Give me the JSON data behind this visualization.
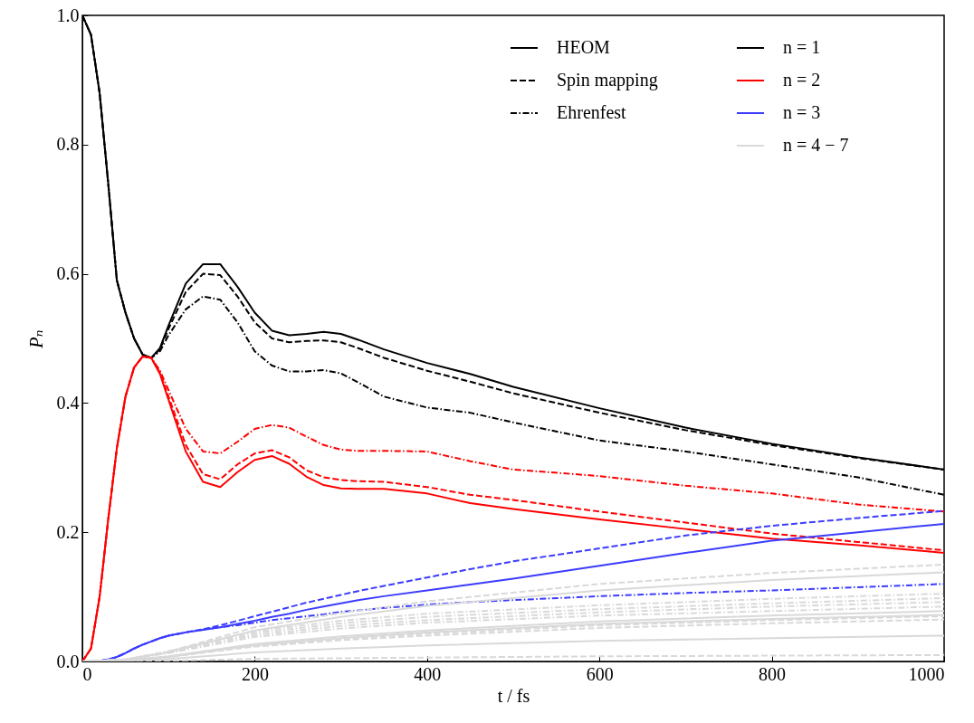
{
  "chart_data": {
    "type": "line",
    "xlabel": "t / fs",
    "ylabel": "Pₙ",
    "xlim": [
      0,
      1000
    ],
    "ylim": [
      0,
      1
    ],
    "xticks": [
      0,
      200,
      400,
      600,
      800,
      1000
    ],
    "yticks": [
      {
        "value": 0,
        "label": "0.0"
      },
      {
        "value": 0.2,
        "label": "0.2"
      },
      {
        "value": 0.4,
        "label": "0.4"
      },
      {
        "value": 0.6,
        "label": "0.6"
      },
      {
        "value": 0.8,
        "label": "0.8"
      },
      {
        "value": 1,
        "label": "1.0"
      }
    ],
    "legend": "top right",
    "annotations": [
      "HEOM",
      "Spin mapping",
      "Ehrenfest"
    ],
    "x": [
      0,
      10,
      20,
      30,
      40,
      50,
      60,
      70,
      80,
      90,
      100,
      120,
      140,
      160,
      180,
      200,
      220,
      240,
      260,
      280,
      300,
      320,
      350,
      400,
      450,
      500,
      600,
      700,
      800,
      900,
      1000
    ],
    "series": [
      {
        "name": "n = 1",
        "color": "#000000",
        "line_style": "solid",
        "values": [
          1,
          0.97,
          0.88,
          0.74,
          0.59,
          0.54,
          0.5,
          0.475,
          0.47,
          0.485,
          0.52,
          0.585,
          0.615,
          0.615,
          0.58,
          0.54,
          0.512,
          0.505,
          0.507,
          0.51,
          0.507,
          0.498,
          0.483,
          0.462,
          0.445,
          0.425,
          0.392,
          0.362,
          0.337,
          0.316,
          0.297
        ]
      },
      {
        "color": "#000000",
        "line_style": "dashed",
        "values": [
          1,
          0.97,
          0.88,
          0.74,
          0.59,
          0.54,
          0.5,
          0.475,
          0.47,
          0.483,
          0.515,
          0.572,
          0.6,
          0.598,
          0.565,
          0.525,
          0.5,
          0.494,
          0.496,
          0.497,
          0.494,
          0.485,
          0.47,
          0.45,
          0.433,
          0.415,
          0.385,
          0.358,
          0.335,
          0.315,
          0.297
        ]
      },
      {
        "color": "#000000",
        "line_style": "dashdot",
        "values": [
          1,
          0.97,
          0.88,
          0.74,
          0.59,
          0.54,
          0.5,
          0.475,
          0.47,
          0.48,
          0.505,
          0.545,
          0.565,
          0.56,
          0.525,
          0.48,
          0.458,
          0.449,
          0.449,
          0.451,
          0.446,
          0.432,
          0.41,
          0.393,
          0.385,
          0.37,
          0.342,
          0.325,
          0.305,
          0.285,
          0.258
        ]
      },
      {
        "name": "n = 2",
        "color": "#ff0000",
        "line_style": "solid",
        "values": [
          0,
          0.02,
          0.1,
          0.22,
          0.33,
          0.41,
          0.455,
          0.472,
          0.47,
          0.445,
          0.405,
          0.325,
          0.278,
          0.27,
          0.293,
          0.312,
          0.318,
          0.306,
          0.286,
          0.273,
          0.268,
          0.267,
          0.267,
          0.26,
          0.245,
          0.236,
          0.22,
          0.205,
          0.19,
          0.18,
          0.168
        ]
      },
      {
        "color": "#ff0000",
        "line_style": "dashed",
        "values": [
          0,
          0.02,
          0.1,
          0.22,
          0.33,
          0.41,
          0.455,
          0.472,
          0.47,
          0.447,
          0.41,
          0.335,
          0.29,
          0.282,
          0.305,
          0.322,
          0.327,
          0.316,
          0.296,
          0.285,
          0.281,
          0.279,
          0.278,
          0.27,
          0.258,
          0.25,
          0.232,
          0.215,
          0.198,
          0.185,
          0.172
        ]
      },
      {
        "color": "#ff0000",
        "line_style": "dashdot",
        "values": [
          0,
          0.02,
          0.1,
          0.22,
          0.33,
          0.41,
          0.455,
          0.472,
          0.47,
          0.45,
          0.42,
          0.36,
          0.325,
          0.322,
          0.34,
          0.36,
          0.366,
          0.362,
          0.348,
          0.335,
          0.328,
          0.326,
          0.326,
          0.325,
          0.31,
          0.297,
          0.287,
          0.272,
          0.26,
          0.243,
          0.232
        ]
      },
      {
        "name": "n = 3",
        "color": "#3c3cff",
        "line_style": "solid",
        "values": [
          0,
          0,
          0.001,
          0.003,
          0.007,
          0.013,
          0.02,
          0.026,
          0.031,
          0.036,
          0.04,
          0.045,
          0.049,
          0.053,
          0.058,
          0.063,
          0.069,
          0.074,
          0.08,
          0.085,
          0.09,
          0.095,
          0.101,
          0.11,
          0.119,
          0.128,
          0.148,
          0.168,
          0.187,
          0.2,
          0.213
        ]
      },
      {
        "color": "#3c3cff",
        "line_style": "dashed",
        "values": [
          0,
          0,
          0.001,
          0.003,
          0.007,
          0.013,
          0.02,
          0.026,
          0.031,
          0.036,
          0.04,
          0.045,
          0.05,
          0.056,
          0.063,
          0.07,
          0.077,
          0.084,
          0.091,
          0.097,
          0.103,
          0.109,
          0.117,
          0.13,
          0.143,
          0.155,
          0.175,
          0.195,
          0.21,
          0.222,
          0.233
        ]
      },
      {
        "color": "#3c3cff",
        "line_style": "dashdot",
        "values": [
          0,
          0,
          0.001,
          0.003,
          0.007,
          0.013,
          0.02,
          0.026,
          0.031,
          0.036,
          0.04,
          0.045,
          0.049,
          0.053,
          0.056,
          0.06,
          0.064,
          0.067,
          0.07,
          0.073,
          0.077,
          0.079,
          0.083,
          0.088,
          0.092,
          0.095,
          0.101,
          0.106,
          0.11,
          0.115,
          0.12
        ]
      },
      {
        "name": "n = 4 − 7",
        "color": "#d9d9d9",
        "line_style": "solid",
        "x": [
          0,
          50,
          100,
          200,
          300,
          400,
          600,
          800,
          1000
        ],
        "values": [
          0,
          0.003,
          0.014,
          0.048,
          0.069,
          0.086,
          0.11,
          0.126,
          0.138
        ]
      },
      {
        "color": "#d9d9d9",
        "line_style": "solid",
        "x": [
          0,
          50,
          100,
          200,
          300,
          400,
          600,
          800,
          1000
        ],
        "values": [
          0,
          0.002,
          0.008,
          0.027,
          0.039,
          0.048,
          0.062,
          0.071,
          0.078
        ]
      },
      {
        "color": "#d9d9d9",
        "line_style": "solid",
        "x": [
          0,
          50,
          100,
          200,
          300,
          400,
          600,
          800,
          1000
        ],
        "values": [
          0,
          0.001,
          0.007,
          0.025,
          0.036,
          0.045,
          0.058,
          0.066,
          0.072
        ]
      },
      {
        "color": "#d9d9d9",
        "line_style": "solid",
        "x": [
          0,
          50,
          100,
          200,
          300,
          400,
          600,
          800,
          1000
        ],
        "values": [
          0,
          0.001,
          0.004,
          0.014,
          0.02,
          0.025,
          0.032,
          0.036,
          0.04
        ]
      },
      {
        "color": "#d9d9d9",
        "line_style": "dashed",
        "x": [
          0,
          50,
          100,
          200,
          300,
          400,
          600,
          800,
          1000
        ],
        "values": [
          0,
          0.003,
          0.015,
          0.053,
          0.075,
          0.093,
          0.12,
          0.137,
          0.15
        ]
      },
      {
        "color": "#d9d9d9",
        "line_style": "dashed",
        "x": [
          0,
          50,
          100,
          200,
          300,
          400,
          600,
          800,
          1000
        ],
        "values": [
          0,
          0.001,
          0.007,
          0.025,
          0.035,
          0.043,
          0.056,
          0.064,
          0.07
        ]
      },
      {
        "color": "#d9d9d9",
        "line_style": "dashed",
        "x": [
          0,
          50,
          100,
          200,
          300,
          400,
          600,
          800,
          1000
        ],
        "values": [
          0,
          0.001,
          0.007,
          0.023,
          0.033,
          0.04,
          0.052,
          0.059,
          0.065
        ]
      },
      {
        "color": "#d9d9d9",
        "line_style": "dashed",
        "x": [
          0,
          50,
          100,
          200,
          300,
          400,
          600,
          800,
          1000
        ],
        "values": [
          0,
          0,
          0.001,
          0.004,
          0.005,
          0.006,
          0.008,
          0.009,
          0.01
        ]
      },
      {
        "color": "#d9d9d9",
        "line_style": "dashdot",
        "x": [
          0,
          50,
          100,
          200,
          300,
          400,
          600,
          800,
          1000
        ],
        "values": [
          0,
          0.003,
          0.016,
          0.047,
          0.063,
          0.074,
          0.087,
          0.097,
          0.105
        ]
      },
      {
        "color": "#d9d9d9",
        "line_style": "dashdot",
        "x": [
          0,
          50,
          100,
          200,
          300,
          400,
          600,
          800,
          1000
        ],
        "values": [
          0,
          0.003,
          0.015,
          0.044,
          0.059,
          0.069,
          0.081,
          0.09,
          0.098
        ]
      },
      {
        "color": "#d9d9d9",
        "line_style": "dashdot",
        "x": [
          0,
          50,
          100,
          200,
          300,
          400,
          600,
          800,
          1000
        ],
        "values": [
          0,
          0.003,
          0.014,
          0.041,
          0.055,
          0.064,
          0.076,
          0.085,
          0.092
        ]
      },
      {
        "color": "#d9d9d9",
        "line_style": "dashdot",
        "x": [
          0,
          50,
          100,
          200,
          300,
          400,
          600,
          800,
          1000
        ],
        "values": [
          0,
          0.003,
          0.013,
          0.038,
          0.051,
          0.06,
          0.071,
          0.078,
          0.085
        ]
      }
    ]
  }
}
